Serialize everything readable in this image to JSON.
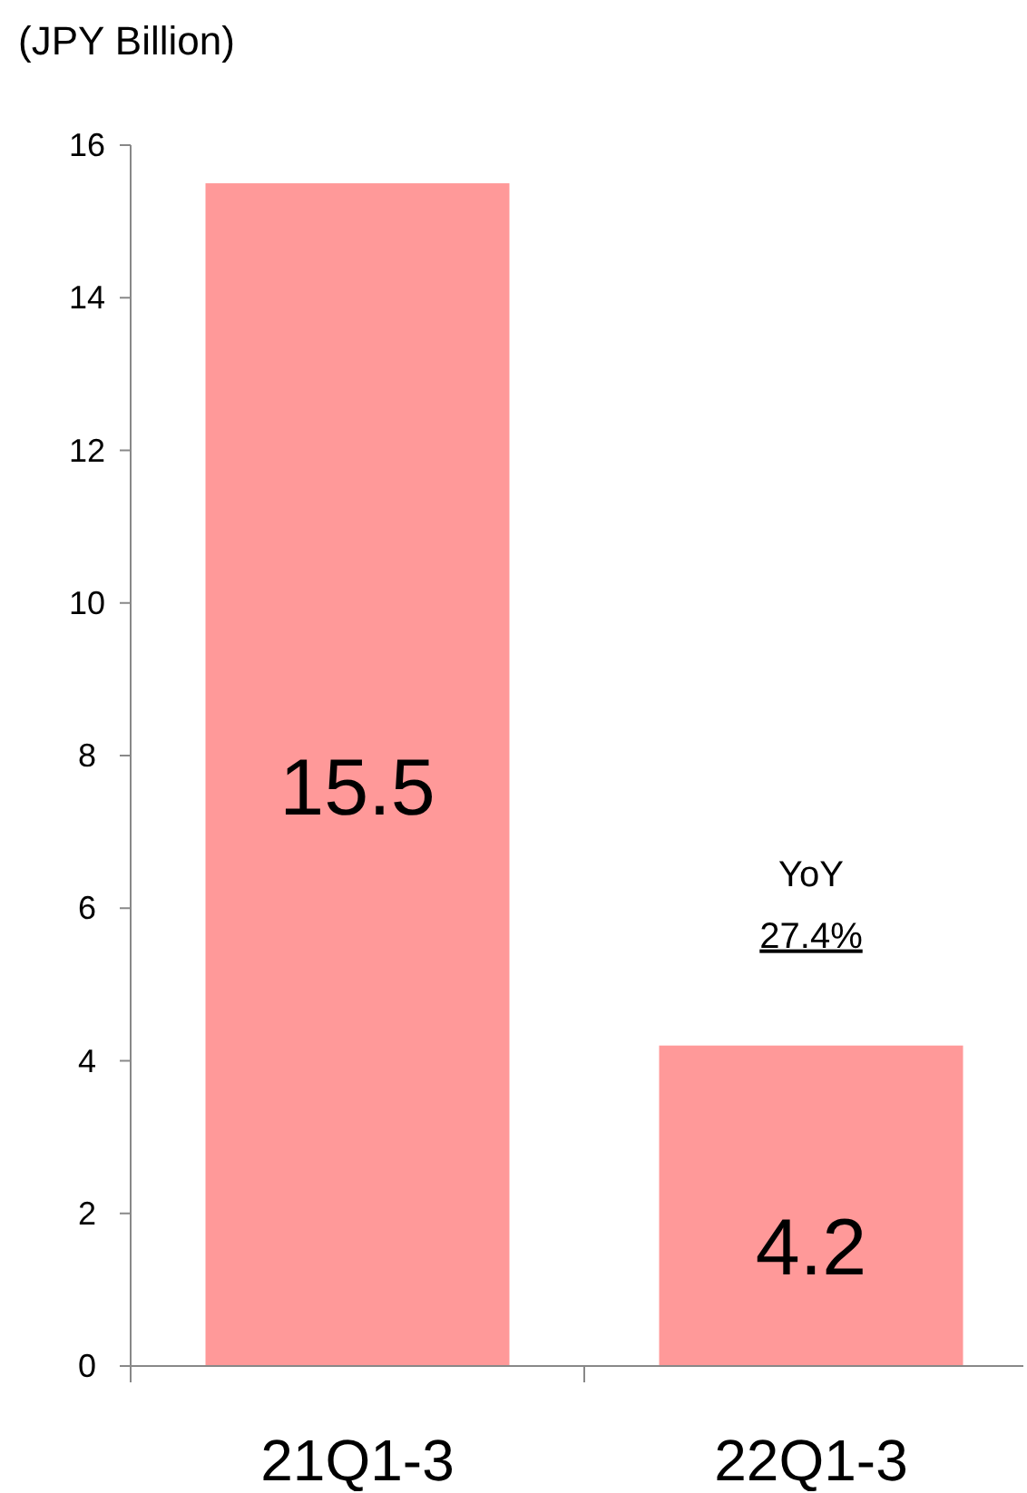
{
  "chart_data": {
    "type": "bar",
    "ylabel": "(JPY Billion)",
    "categories": [
      "21Q1-3",
      "22Q1-3"
    ],
    "values": [
      15.5,
      4.2
    ],
    "color": "#ff9999",
    "ylim": [
      0,
      16
    ],
    "yticks": [
      0,
      2,
      4,
      6,
      8,
      10,
      12,
      14,
      16
    ],
    "data_labels": true,
    "grid": false,
    "annotations": [
      "YoY\n27.4%"
    ]
  }
}
